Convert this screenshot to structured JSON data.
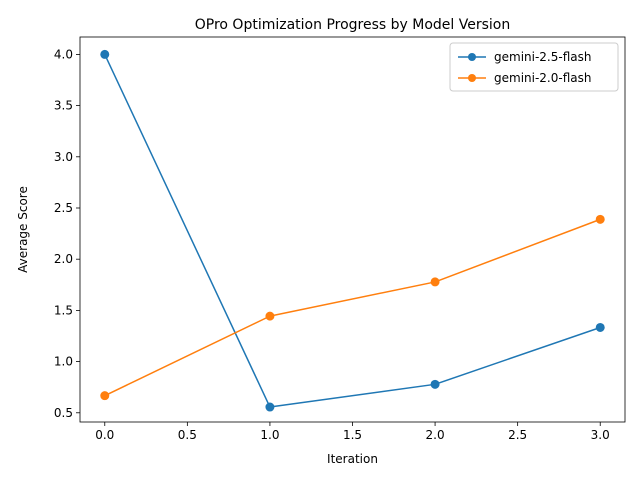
{
  "chart_data": {
    "type": "line",
    "title": "OPro Optimization Progress by Model Version",
    "xlabel": "Iteration",
    "ylabel": "Average Score",
    "x": [
      0,
      1,
      2,
      3
    ],
    "xlim": [
      -0.15,
      3.15
    ],
    "ylim": [
      0.41,
      4.17
    ],
    "xticks": [
      0.0,
      0.5,
      1.0,
      1.5,
      2.0,
      2.5,
      3.0
    ],
    "yticks": [
      0.5,
      1.0,
      1.5,
      2.0,
      2.5,
      3.0,
      3.5,
      4.0
    ],
    "xtick_labels": [
      "0.0",
      "0.5",
      "1.0",
      "1.5",
      "2.0",
      "2.5",
      "3.0"
    ],
    "ytick_labels": [
      "0.5",
      "1.0",
      "1.5",
      "2.0",
      "2.5",
      "3.0",
      "3.5",
      "4.0"
    ],
    "grid": false,
    "legend_position": "top-right",
    "series": [
      {
        "name": "gemini-2.5-flash",
        "color": "#1f77b4",
        "marker": "circle",
        "values": [
          4.0,
          0.556,
          0.778,
          1.333
        ]
      },
      {
        "name": "gemini-2.0-flash",
        "color": "#ff7f0e",
        "marker": "circle",
        "values": [
          0.667,
          1.444,
          1.778,
          2.389
        ]
      }
    ]
  }
}
